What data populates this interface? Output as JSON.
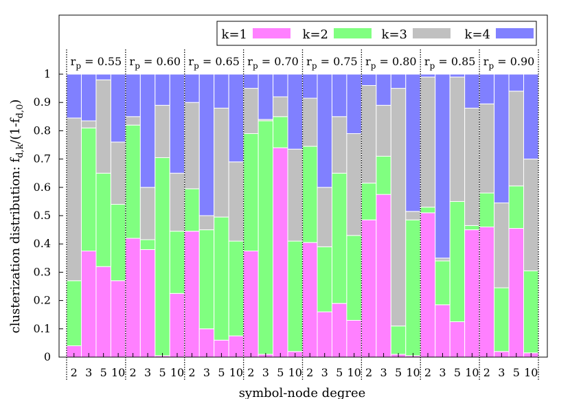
{
  "chart_data": {
    "type": "bar",
    "stacked": true,
    "xlabel": "symbol-node degree",
    "ylabel": "clusterization distribution: f",
    "ylabel_sub": "d,k",
    "ylabel_rest": "/(1-f",
    "ylabel_sub2": "d,0",
    "ylabel_end": ")",
    "ylim": [
      0,
      1
    ],
    "yticks": [
      "0",
      "0.1",
      "0.2",
      "0.3",
      "0.4",
      "0.5",
      "0.6",
      "0.7",
      "0.8",
      "0.9",
      "1"
    ],
    "legend_position": "top",
    "categories": [
      "2",
      "3",
      "5",
      "10"
    ],
    "series_names": [
      "k=1",
      "k=2",
      "k=3",
      "k=4"
    ],
    "colors": [
      "#ff80ff",
      "#80ff80",
      "#c0c0c0",
      "#8080ff"
    ],
    "groups": [
      {
        "label_base": "r",
        "label_sub": "p",
        "label_value": " = 0.55",
        "bars": [
          [
            0.04,
            0.23,
            0.575,
            0.155
          ],
          [
            0.375,
            0.435,
            0.025,
            0.165
          ],
          [
            0.32,
            0.33,
            0.33,
            0.02
          ],
          [
            0.27,
            0.27,
            0.22,
            0.24
          ]
        ]
      },
      {
        "label_base": "r",
        "label_sub": "p",
        "label_value": " = 0.60",
        "bars": [
          [
            0.42,
            0.4,
            0.03,
            0.15
          ],
          [
            0.38,
            0.035,
            0.185,
            0.4
          ],
          [
            0.005,
            0.7,
            0.185,
            0.11
          ],
          [
            0.225,
            0.22,
            0.205,
            0.35
          ]
        ]
      },
      {
        "label_base": "r",
        "label_sub": "p",
        "label_value": " = 0.65",
        "bars": [
          [
            0.445,
            0.15,
            0.305,
            0.1
          ],
          [
            0.1,
            0.35,
            0.05,
            0.5
          ],
          [
            0.06,
            0.435,
            0.385,
            0.12
          ],
          [
            0.075,
            0.335,
            0.28,
            0.31
          ]
        ]
      },
      {
        "label_base": "r",
        "label_sub": "p",
        "label_value": " = 0.70",
        "bars": [
          [
            0.375,
            0.415,
            0.16,
            0.05
          ],
          [
            0.01,
            0.825,
            0.005,
            0.16
          ],
          [
            0.74,
            0.11,
            0.07,
            0.08
          ],
          [
            0.02,
            0.39,
            0.325,
            0.265
          ]
        ]
      },
      {
        "label_base": "r",
        "label_sub": "p",
        "label_value": " = 0.75",
        "bars": [
          [
            0.405,
            0.34,
            0.17,
            0.085
          ],
          [
            0.16,
            0.23,
            0.21,
            0.4
          ],
          [
            0.19,
            0.46,
            0.2,
            0.15
          ],
          [
            0.13,
            0.3,
            0.36,
            0.21
          ]
        ]
      },
      {
        "label_base": "r",
        "label_sub": "p",
        "label_value": " = 0.80",
        "bars": [
          [
            0.485,
            0.13,
            0.345,
            0.04
          ],
          [
            0.575,
            0.135,
            0.18,
            0.11
          ],
          [
            0.01,
            0.1,
            0.84,
            0.05
          ],
          [
            0.005,
            0.48,
            0.03,
            0.485
          ]
        ]
      },
      {
        "label_base": "r",
        "label_sub": "p",
        "label_value": " = 0.85",
        "bars": [
          [
            0.51,
            0.02,
            0.46,
            0.01
          ],
          [
            0.185,
            0.155,
            0.01,
            0.65
          ],
          [
            0.125,
            0.425,
            0.44,
            0.01
          ],
          [
            0.45,
            0.015,
            0.415,
            0.12
          ]
        ]
      },
      {
        "label_base": "r",
        "label_sub": "p",
        "label_value": " = 0.90",
        "bars": [
          [
            0.46,
            0.12,
            0.315,
            0.105
          ],
          [
            0.02,
            0.225,
            0.3,
            0.455
          ],
          [
            0.455,
            0.15,
            0.335,
            0.06
          ],
          [
            0.015,
            0.29,
            0.395,
            0.3
          ]
        ]
      }
    ]
  }
}
